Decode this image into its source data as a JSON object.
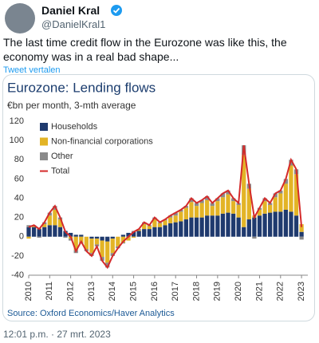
{
  "tweet": {
    "author": "Daniel Kral",
    "handle": "@DanielKral1",
    "text": "The last time credit flow in the Eurozone was like this, the economy was in a real bad shape...",
    "translate": "Tweet vertalen",
    "timestamp": "12:01 p.m. · 27 mrt. 2023"
  },
  "chart_data": {
    "type": "bar",
    "stacked": true,
    "title": "Eurozone: Lending flows",
    "subtitle": "€bn per month, 3-mth average",
    "source": "Source: Oxford Economics/Haver Analytics",
    "x": [
      2010,
      2010.25,
      2010.5,
      2010.75,
      2011,
      2011.25,
      2011.5,
      2011.75,
      2012,
      2012.25,
      2012.5,
      2012.75,
      2013,
      2013.25,
      2013.5,
      2013.75,
      2014,
      2014.25,
      2014.5,
      2014.75,
      2015,
      2015.25,
      2015.5,
      2015.75,
      2016,
      2016.25,
      2016.5,
      2016.75,
      2017,
      2017.25,
      2017.5,
      2017.75,
      2018,
      2018.25,
      2018.5,
      2018.75,
      2019,
      2019.25,
      2019.5,
      2019.75,
      2020,
      2020.25,
      2020.5,
      2020.75,
      2021,
      2021.25,
      2021.5,
      2021.75,
      2022,
      2022.25,
      2022.5,
      2022.75,
      2023
    ],
    "series": [
      {
        "name": "Households",
        "color": "#1f3a6e",
        "values": [
          10,
          10,
          8,
          10,
          12,
          12,
          10,
          6,
          4,
          2,
          2,
          0,
          -2,
          -2,
          -4,
          -5,
          -2,
          0,
          2,
          4,
          5,
          6,
          8,
          8,
          10,
          10,
          12,
          14,
          15,
          16,
          18,
          20,
          20,
          20,
          22,
          22,
          22,
          24,
          25,
          24,
          20,
          10,
          18,
          20,
          22,
          24,
          25,
          26,
          26,
          28,
          26,
          22,
          5
        ]
      },
      {
        "name": "Non-financial corporations",
        "color": "#e3b426",
        "values": [
          -2,
          1,
          1,
          3,
          10,
          16,
          8,
          0,
          -2,
          -14,
          -6,
          -13,
          -15,
          -6,
          -17,
          -22,
          -15,
          -10,
          -6,
          -4,
          -1,
          1,
          5,
          3,
          8,
          4,
          5,
          6,
          7,
          10,
          12,
          16,
          12,
          15,
          16,
          10,
          15,
          17,
          19,
          13,
          13,
          75,
          32,
          2,
          6,
          13,
          8,
          15,
          19,
          27,
          48,
          43,
          8
        ]
      },
      {
        "name": "Other",
        "color": "#8a8a8a",
        "values": [
          2,
          1,
          -1,
          2,
          3,
          4,
          2,
          -1,
          -2,
          -3,
          -1,
          -2,
          -3,
          -2,
          -4,
          -5,
          -3,
          -2,
          -1,
          0,
          1,
          1,
          2,
          1,
          2,
          1,
          1,
          2,
          3,
          2,
          2,
          4,
          3,
          3,
          4,
          3,
          3,
          4,
          4,
          3,
          2,
          10,
          5,
          -2,
          2,
          3,
          2,
          4,
          3,
          5,
          6,
          5,
          -3
        ]
      },
      {
        "name": "Total",
        "color": "#d42a2a",
        "type": "line",
        "values": [
          10,
          12,
          8,
          15,
          25,
          32,
          20,
          5,
          0,
          -15,
          -5,
          -15,
          -20,
          -10,
          -25,
          -32,
          -20,
          -12,
          -5,
          0,
          5,
          8,
          15,
          12,
          20,
          15,
          18,
          22,
          25,
          28,
          32,
          40,
          35,
          38,
          42,
          35,
          40,
          45,
          48,
          40,
          35,
          95,
          55,
          20,
          30,
          40,
          35,
          45,
          48,
          60,
          80,
          70,
          10
        ]
      }
    ],
    "xlim": [
      2010,
      2023.3
    ],
    "xticks": [
      2010,
      2011,
      2012,
      2013,
      2014,
      2015,
      2016,
      2017,
      2018,
      2019,
      2020,
      2021,
      2022,
      2023
    ],
    "ylim": [
      -40,
      120
    ],
    "yticks": [
      -40,
      -20,
      0,
      20,
      40,
      60,
      80,
      100,
      120
    ],
    "grid": false,
    "legend": "upper-left"
  }
}
